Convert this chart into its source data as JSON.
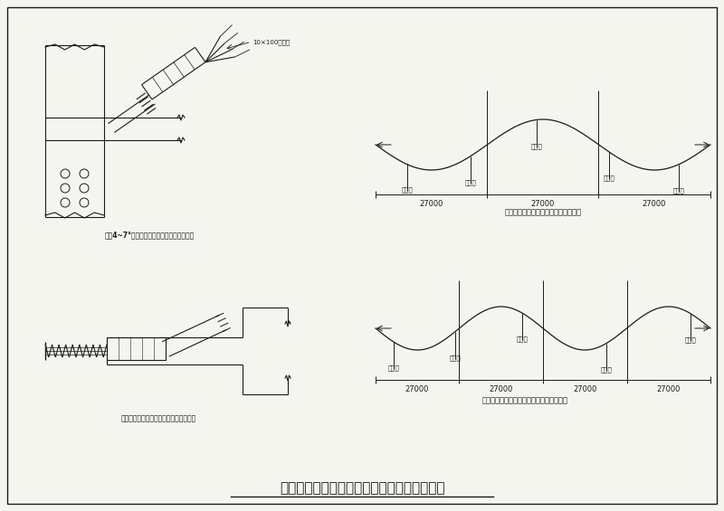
{
  "bg_color": "#f5f5f0",
  "line_color": "#1a1a1a",
  "title": "预应力转角张拉及灌浆孔、泌水孔布置示意图",
  "top_right_caption": "预应力第三跨管道灌浆孔及泌水孔布置",
  "bottom_right_caption": "预应力跨跨管道灌浆孔布置及泌水孔布置图",
  "top_left_caption": "坡角4~7°斜锚具中端张拉装置剖略张拉示意",
  "bottom_left_caption": "无粘接预应力中端张拉锚固上述锚具示意",
  "spacing_label": "27000",
  "jack_label": "10×100千斤顶",
  "top_right_labels": [
    "泌水孔",
    "泌水孔",
    "灌浆孔",
    "泌水孔",
    "泌水孔"
  ],
  "bottom_right_labels": [
    "泌水孔",
    "泌水孔",
    "灌浆孔",
    "泌水孔",
    "泌水孔"
  ]
}
